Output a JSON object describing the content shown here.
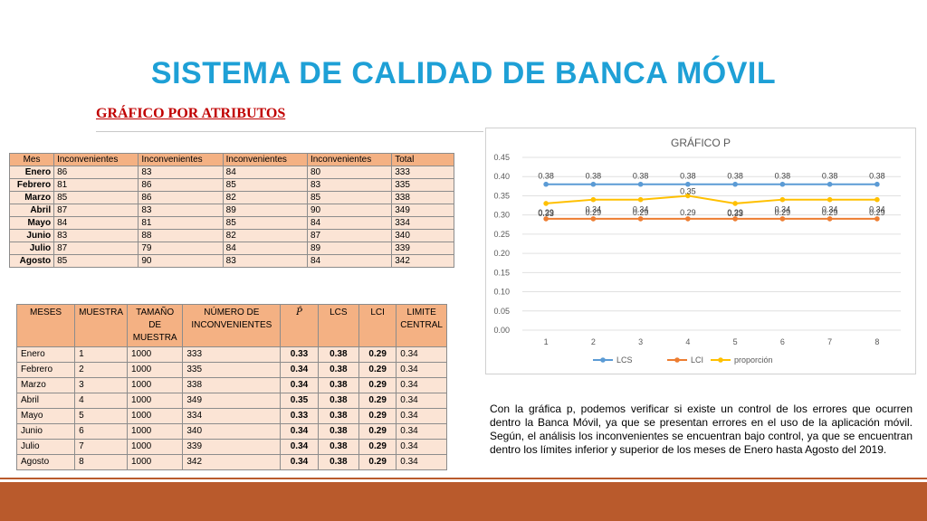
{
  "slide": {
    "title": "SISTEMA DE CALIDAD DE BANCA MÓVIL",
    "subtitle": "GRÁFICO POR ATRIBUTOS",
    "description": "Con la gráfica p, podemos verificar  si existe un control de los errores que ocurren dentro  la Banca Móvil, ya que se presentan errores en el uso de la aplicación móvil. Según, el análisis  los inconvenientes se encuentran bajo control, ya que se encuentran dentro los límites inferior y superior de los meses de Enero hasta Agosto del 2019."
  },
  "table1": {
    "headers": [
      "Mes",
      "Inconvenientes",
      "Inconvenientes",
      "Inconvenientes",
      "Inconvenientes",
      "Total"
    ],
    "rows": [
      [
        "Enero",
        "86",
        "83",
        "84",
        "80",
        "333"
      ],
      [
        "Febrero",
        "81",
        "86",
        "85",
        "83",
        "335"
      ],
      [
        "Marzo",
        "85",
        "86",
        "82",
        "85",
        "338"
      ],
      [
        "Abril",
        "87",
        "83",
        "89",
        "90",
        "349"
      ],
      [
        "Mayo",
        "84",
        "81",
        "85",
        "84",
        "334"
      ],
      [
        "Junio",
        "83",
        "88",
        "82",
        "87",
        "340"
      ],
      [
        "Julio",
        "87",
        "79",
        "84",
        "89",
        "339"
      ],
      [
        "Agosto",
        "85",
        "90",
        "83",
        "84",
        "342"
      ]
    ]
  },
  "table2": {
    "headers": [
      "MESES",
      "MUESTRA",
      "TAMAÑO DE MUESTRA",
      "NÚMERO DE INCONVENIENTES",
      "P̂",
      "LCS",
      "LCI",
      "LIMITE CENTRAL"
    ],
    "rows": [
      [
        "Enero",
        "1",
        "1000",
        "333",
        "0.33",
        "0.38",
        "0.29",
        "0.34"
      ],
      [
        "Febrero",
        "2",
        "1000",
        "335",
        "0.34",
        "0.38",
        "0.29",
        "0.34"
      ],
      [
        "Marzo",
        "3",
        "1000",
        "338",
        "0.34",
        "0.38",
        "0.29",
        "0.34"
      ],
      [
        "Abril",
        "4",
        "1000",
        "349",
        "0.35",
        "0.38",
        "0.29",
        "0.34"
      ],
      [
        "Mayo",
        "5",
        "1000",
        "334",
        "0.33",
        "0.38",
        "0.29",
        "0.34"
      ],
      [
        "Junio",
        "6",
        "1000",
        "340",
        "0.34",
        "0.38",
        "0.29",
        "0.34"
      ],
      [
        "Julio",
        "7",
        "1000",
        "339",
        "0.34",
        "0.38",
        "0.29",
        "0.34"
      ],
      [
        "Agosto",
        "8",
        "1000",
        "342",
        "0.34",
        "0.38",
        "0.29",
        "0.34"
      ]
    ]
  },
  "chart_data": {
    "type": "line",
    "title": "GRÁFICO P",
    "x": [
      1,
      2,
      3,
      4,
      5,
      6,
      7,
      8
    ],
    "ylim": [
      0,
      0.45
    ],
    "yticks": [
      "0.00",
      "0.05",
      "0.10",
      "0.15",
      "0.20",
      "0.25",
      "0.30",
      "0.35",
      "0.40",
      "0.45"
    ],
    "grid": true,
    "legend": "bottom",
    "series": [
      {
        "name": "LCS",
        "color": "#5b9bd5",
        "values": [
          0.38,
          0.38,
          0.38,
          0.38,
          0.38,
          0.38,
          0.38,
          0.38
        ],
        "labels": [
          "0.38",
          "0.38",
          "0.38",
          "0.38",
          "0.38",
          "0.38",
          "0.38",
          "0.38"
        ]
      },
      {
        "name": "LCI",
        "color": "#ed7d31",
        "values": [
          0.29,
          0.29,
          0.29,
          0.29,
          0.29,
          0.29,
          0.29,
          0.29
        ],
        "labels": [
          "0.29",
          "0.29",
          "0.29",
          "0.29",
          "0.29",
          "0.29",
          "0.29",
          "0.29"
        ]
      },
      {
        "name": "proporción",
        "color": "#ffc000",
        "values": [
          0.33,
          0.34,
          0.34,
          0.35,
          0.33,
          0.34,
          0.34,
          0.34
        ],
        "labels": [
          "0.33",
          "0.34",
          "0.34",
          "0.35",
          "0.33",
          "0.34",
          "0.34",
          "0.34"
        ]
      }
    ]
  }
}
